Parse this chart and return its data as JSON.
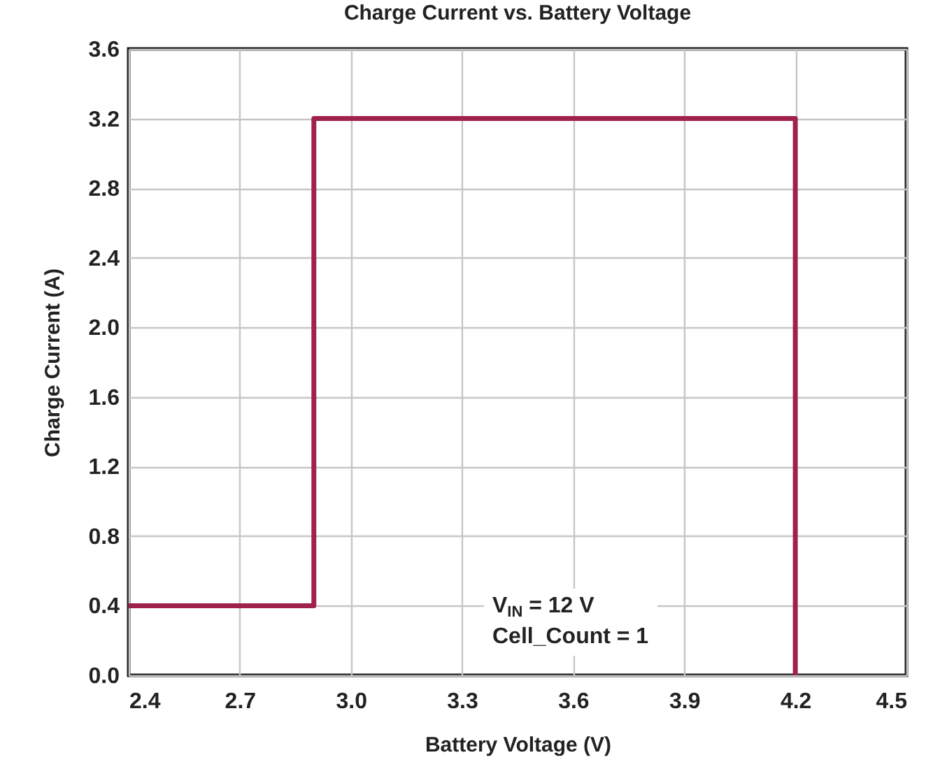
{
  "chart_data": {
    "type": "line",
    "title": "Charge Current vs. Battery Voltage",
    "xlabel": "Battery Voltage (V)",
    "ylabel": "Charge Current (A)",
    "x": [
      2.4,
      2.9,
      2.9,
      4.2,
      4.2
    ],
    "series": [
      {
        "color": "#a0224c",
        "values": [
          0.4,
          0.4,
          3.2,
          3.2,
          0
        ]
      }
    ],
    "xlim": [
      2.4,
      4.5
    ],
    "xticks": [
      2.4,
      2.7,
      {
        "value": 3,
        "label": "3.0"
      },
      3.3,
      3.6,
      3.9,
      4.2,
      4.5
    ],
    "ylim": [
      0,
      3.6
    ],
    "yticks": [
      {
        "value": 0,
        "label": "0.0"
      },
      0.4,
      0.8,
      1.2,
      1.6,
      {
        "value": 2,
        "label": "2.0"
      },
      2.4,
      2.8,
      3.2,
      3.6
    ],
    "grid": true,
    "annotations": [
      "V$_{IN}$ = 12 V",
      "Cell_Count = 1"
    ]
  }
}
